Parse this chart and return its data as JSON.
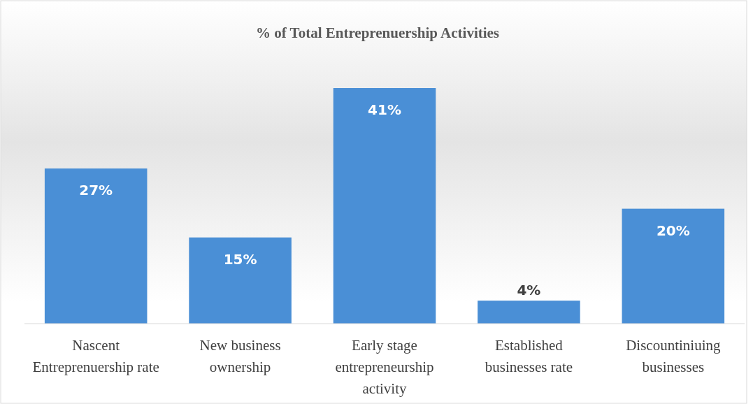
{
  "chart_data": {
    "type": "bar",
    "title": "%  of Total Entreprenuership Activities",
    "categories": [
      "Nascent Entreprenuership rate",
      "New business ownership",
      "Early stage entrepreneurship activity",
      "Established businesses rate",
      "Discountiniuing businesses"
    ],
    "values": [
      27,
      15,
      41,
      4,
      20
    ],
    "value_labels": [
      "27%",
      "15%",
      "41%",
      "4%",
      "20%"
    ],
    "color": "#4a8fd6"
  }
}
